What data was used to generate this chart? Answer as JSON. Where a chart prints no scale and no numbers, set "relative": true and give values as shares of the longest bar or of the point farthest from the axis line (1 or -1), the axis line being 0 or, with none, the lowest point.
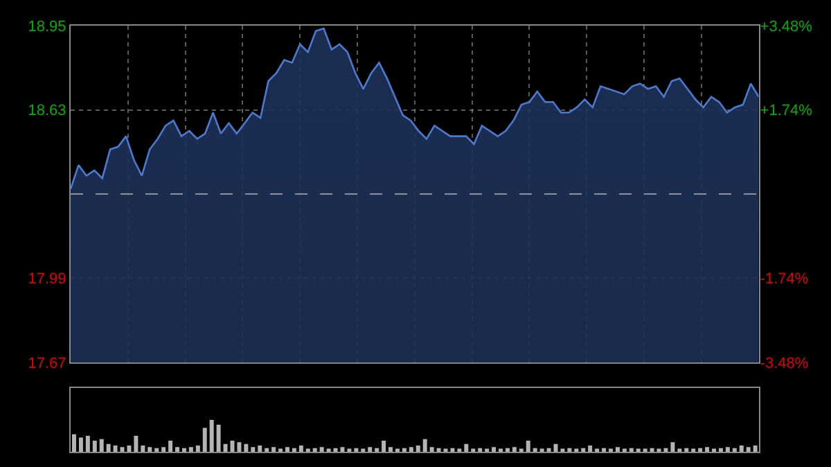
{
  "chart_data": [
    {
      "type": "area",
      "color": "#4a7bd0",
      "categories": [
        null,
        null,
        null,
        null,
        null,
        null,
        null,
        null,
        null,
        null,
        null,
        null,
        null,
        null,
        null,
        null,
        null,
        null,
        null,
        null,
        null,
        null,
        null,
        null,
        null,
        null,
        null,
        null,
        null,
        null,
        null,
        null,
        null,
        null,
        null,
        null,
        null,
        null,
        null,
        null,
        null,
        null,
        null,
        null,
        null,
        null,
        null,
        null,
        null,
        null,
        null,
        null,
        null,
        null,
        null,
        null,
        null,
        null,
        null,
        null,
        null,
        null,
        null,
        null,
        null,
        null,
        null,
        null,
        null,
        null,
        null,
        null,
        null,
        null,
        null,
        null,
        null,
        null,
        null,
        null,
        null,
        null,
        null,
        null,
        null,
        null,
        null,
        null
      ],
      "values": [
        18.33,
        18.42,
        18.38,
        18.4,
        18.37,
        18.48,
        18.49,
        18.53,
        18.44,
        18.38,
        18.48,
        18.52,
        18.57,
        18.59,
        18.53,
        18.55,
        18.52,
        18.54,
        18.62,
        18.54,
        18.58,
        18.54,
        18.58,
        18.62,
        18.6,
        18.74,
        18.77,
        18.82,
        18.81,
        18.88,
        18.85,
        18.93,
        18.94,
        18.86,
        18.88,
        18.85,
        18.77,
        18.71,
        18.77,
        18.81,
        18.75,
        18.68,
        18.61,
        18.59,
        18.55,
        18.52,
        18.57,
        18.55,
        18.53,
        18.53,
        18.53,
        18.5,
        18.57,
        18.55,
        18.53,
        18.55,
        18.59,
        18.65,
        18.66,
        18.7,
        18.66,
        18.66,
        18.62,
        18.62,
        18.64,
        18.67,
        18.64,
        18.72,
        18.71,
        18.7,
        18.69,
        18.72,
        18.73,
        18.71,
        18.72,
        18.68,
        18.74,
        18.75,
        18.71,
        18.67,
        18.64,
        18.68,
        18.66,
        18.62,
        18.64,
        18.65,
        18.73,
        18.68
      ],
      "ylim": [
        17.67,
        18.95
      ],
      "yticks": [
        17.67,
        17.99,
        18.63,
        18.95
      ],
      "y2lim": [
        -3.48,
        3.48
      ],
      "y2ticks": [
        {
          "value": 3.48,
          "label": "+3.48%"
        },
        {
          "value": 1.74,
          "label": "+1.74%"
        },
        {
          "value": -1.74,
          "label": "-1.74%"
        },
        {
          "value": -3.48,
          "label": "-3.48%"
        }
      ],
      "ref_lines": [
        {
          "axis": "y",
          "value": 18.31,
          "line_style": "dashed"
        }
      ],
      "grid": true,
      "tick_labels": "y"
    },
    {
      "type": "bar",
      "relative": true,
      "color": "#b4b4b4",
      "tick_labels": false,
      "categories": [
        null,
        null,
        null,
        null,
        null,
        null,
        null,
        null,
        null,
        null,
        null,
        null,
        null,
        null,
        null,
        null,
        null,
        null,
        null,
        null,
        null,
        null,
        null,
        null,
        null,
        null,
        null,
        null,
        null,
        null,
        null,
        null,
        null,
        null,
        null,
        null,
        null,
        null,
        null,
        null,
        null,
        null,
        null,
        null,
        null,
        null,
        null,
        null,
        null,
        null,
        null,
        null,
        null,
        null,
        null,
        null,
        null,
        null,
        null,
        null,
        null,
        null,
        null,
        null,
        null,
        null,
        null,
        null,
        null,
        null,
        null,
        null,
        null,
        null,
        null,
        null,
        null,
        null,
        null,
        null,
        null,
        null,
        null,
        null,
        null,
        null,
        null,
        null,
        null,
        null,
        null,
        null,
        null,
        null,
        null,
        null,
        null,
        null,
        null,
        null
      ],
      "values": [
        0.55,
        0.45,
        0.5,
        0.35,
        0.4,
        0.25,
        0.2,
        0.15,
        0.2,
        0.5,
        0.2,
        0.15,
        0.12,
        0.15,
        0.35,
        0.15,
        0.12,
        0.15,
        0.2,
        0.75,
        1.0,
        0.85,
        0.25,
        0.35,
        0.3,
        0.25,
        0.15,
        0.2,
        0.12,
        0.15,
        0.1,
        0.15,
        0.12,
        0.2,
        0.1,
        0.12,
        0.15,
        0.1,
        0.12,
        0.15,
        0.1,
        0.12,
        0.1,
        0.15,
        0.12,
        0.35,
        0.15,
        0.1,
        0.12,
        0.15,
        0.2,
        0.4,
        0.15,
        0.12,
        0.1,
        0.12,
        0.1,
        0.25,
        0.1,
        0.12,
        0.1,
        0.15,
        0.1,
        0.12,
        0.15,
        0.1,
        0.35,
        0.12,
        0.1,
        0.12,
        0.25,
        0.1,
        0.12,
        0.1,
        0.12,
        0.2,
        0.1,
        0.12,
        0.1,
        0.15,
        0.1,
        0.12,
        0.1,
        0.1,
        0.12,
        0.1,
        0.12,
        0.3,
        0.1,
        0.12,
        0.1,
        0.12,
        0.15,
        0.1,
        0.12,
        0.15,
        0.12,
        0.2,
        0.15,
        0.2
      ]
    }
  ]
}
